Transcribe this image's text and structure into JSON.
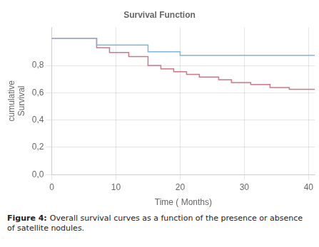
{
  "chart_data": {
    "type": "line",
    "title": "Survival Function",
    "xlabel": "Time ( Months)",
    "ylabel": "cumulative\nSurvival",
    "annotations": [
      "Figure 4:",
      "Overall survival curves as a function of the presence or absence\nof satellite nodules."
    ],
    "xlim": [
      0,
      41
    ],
    "xticks": [
      0,
      10,
      20,
      30,
      40
    ],
    "ylim": [
      0.0,
      1.08
    ],
    "yticks": [
      {
        "value": 0.0,
        "label": "0,0"
      },
      {
        "value": 0.2,
        "label": "0,2"
      },
      {
        "value": 0.4,
        "label": "0,4"
      },
      {
        "value": 0.6,
        "label": "0,6"
      },
      {
        "value": 0.8,
        "label": "0,8"
      }
    ],
    "grid": true,
    "line_style": "step",
    "series": [
      {
        "color": "#7ab8d9",
        "x": [
          0,
          7,
          7,
          15,
          15,
          20,
          20,
          30,
          30,
          41
        ],
        "values": [
          1.0,
          1.0,
          0.95,
          0.95,
          0.9,
          0.9,
          0.875,
          0.875,
          0.875,
          0.875
        ]
      },
      {
        "color": "#cc7788",
        "x": [
          0,
          7,
          7,
          9,
          9,
          12,
          12,
          15,
          15,
          17,
          17,
          19,
          19,
          21,
          21,
          23,
          23,
          26,
          26,
          28,
          28,
          31,
          31,
          34,
          34,
          37,
          37,
          41
        ],
        "values": [
          1.0,
          1.0,
          0.93,
          0.93,
          0.895,
          0.895,
          0.865,
          0.865,
          0.8,
          0.8,
          0.775,
          0.775,
          0.755,
          0.755,
          0.735,
          0.735,
          0.715,
          0.715,
          0.695,
          0.695,
          0.675,
          0.675,
          0.66,
          0.66,
          0.638,
          0.638,
          0.625,
          0.625
        ]
      }
    ]
  }
}
